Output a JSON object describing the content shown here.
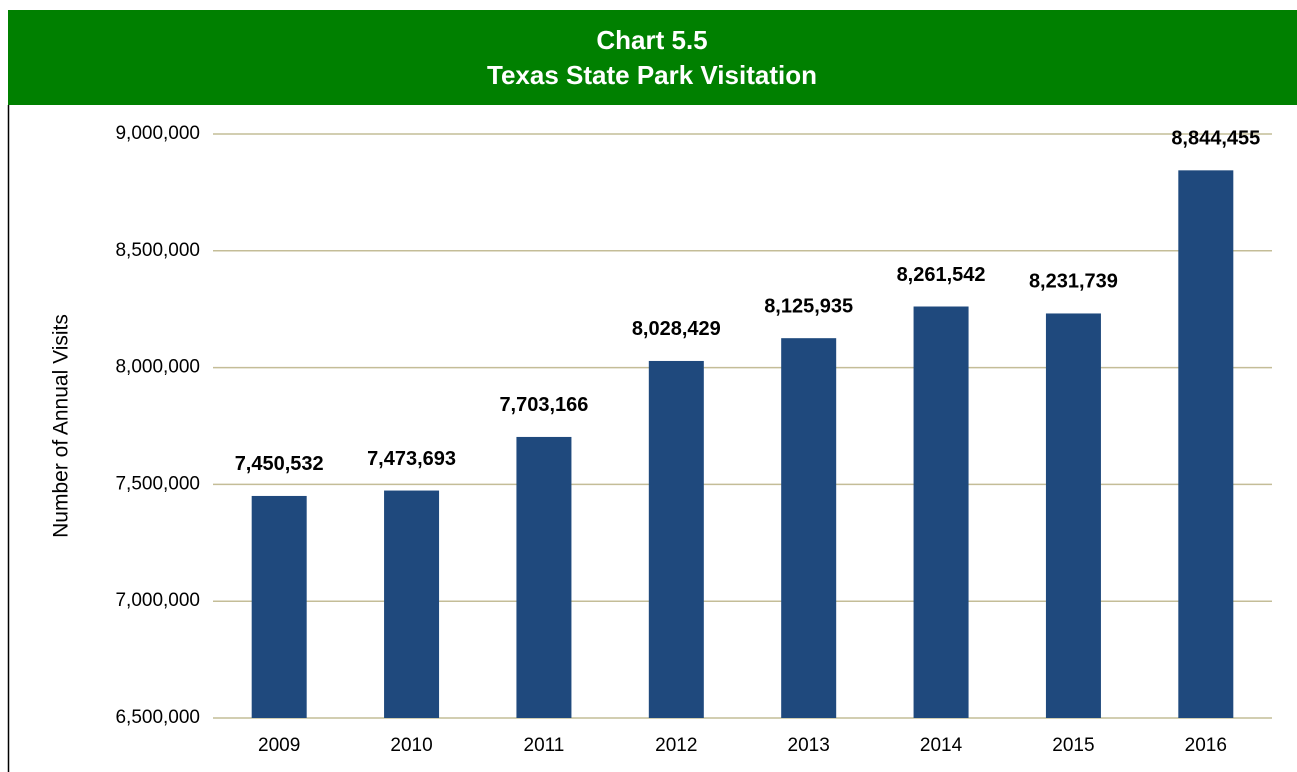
{
  "chart_data": {
    "type": "bar",
    "title": "Chart 5.5",
    "subtitle": "Texas State Park Visitation",
    "y_label": "Number of Annual Visits",
    "categories": [
      "2009",
      "2010",
      "2011",
      "2012",
      "2013",
      "2014",
      "2015",
      "2016"
    ],
    "values": [
      7450532,
      7473693,
      7703166,
      8028429,
      8125935,
      8261542,
      8231739,
      8844455
    ],
    "value_labels": [
      "7,450,532",
      "7,473,693",
      "7,703,166",
      "8,028,429",
      "8,125,935",
      "8,261,542",
      "8,231,739",
      "8,844,455"
    ],
    "color": "#1f497d",
    "ylim": [
      6500000,
      9000000
    ],
    "yticks": [
      {
        "value": 6500000,
        "label": "6,500,000"
      },
      {
        "value": 7000000,
        "label": "7,000,000"
      },
      {
        "value": 7500000,
        "label": "7,500,000"
      },
      {
        "value": 8000000,
        "label": "8,000,000"
      },
      {
        "value": 8500000,
        "label": "8,500,000"
      },
      {
        "value": 9000000,
        "label": "9,000,000"
      }
    ],
    "grid": true
  }
}
